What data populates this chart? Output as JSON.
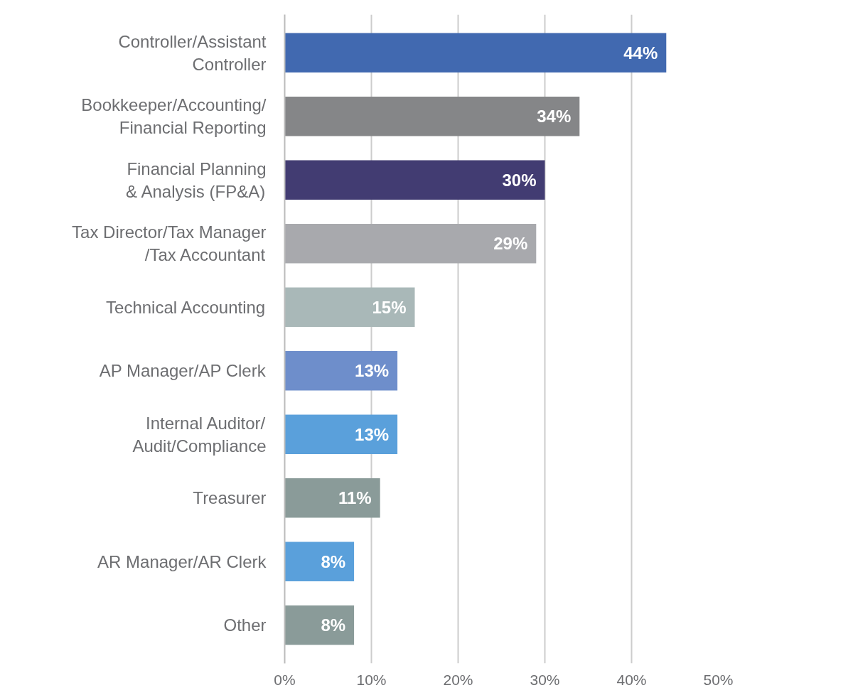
{
  "chart_data": {
    "type": "bar",
    "orientation": "horizontal",
    "categories": [
      "Controller/Assistant\nController",
      "Bookkeeper/Accounting/\nFinancial Reporting",
      "Financial Planning\n& Analysis (FP&A)",
      "Tax Director/Tax Manager\n/Tax Accountant",
      "Technical Accounting",
      "AP Manager/AP Clerk",
      "Internal Auditor/\nAudit/Compliance",
      "Treasurer",
      "AR Manager/AR Clerk",
      "Other"
    ],
    "values": [
      44,
      34,
      30,
      29,
      15,
      13,
      13,
      11,
      8,
      8
    ],
    "colors": [
      "#4169b0",
      "#858688",
      "#423c72",
      "#a8a9ad",
      "#a9b8b8",
      "#6e8ecb",
      "#5aa0db",
      "#8a9b99",
      "#5aa0db",
      "#8a9b99"
    ],
    "value_labels": [
      "44%",
      "34%",
      "30%",
      "29%",
      "15%",
      "13%",
      "13%",
      "11%",
      "8%",
      "8%"
    ],
    "xlim": [
      0,
      50
    ],
    "xticks": [
      {
        "value": 0,
        "label": "0%"
      },
      {
        "value": 10,
        "label": "10%"
      },
      {
        "value": 20,
        "label": "20%"
      },
      {
        "value": 30,
        "label": "30%"
      },
      {
        "value": 40,
        "label": "40%"
      },
      {
        "value": 50,
        "label": "50%"
      }
    ],
    "grid": "x"
  }
}
